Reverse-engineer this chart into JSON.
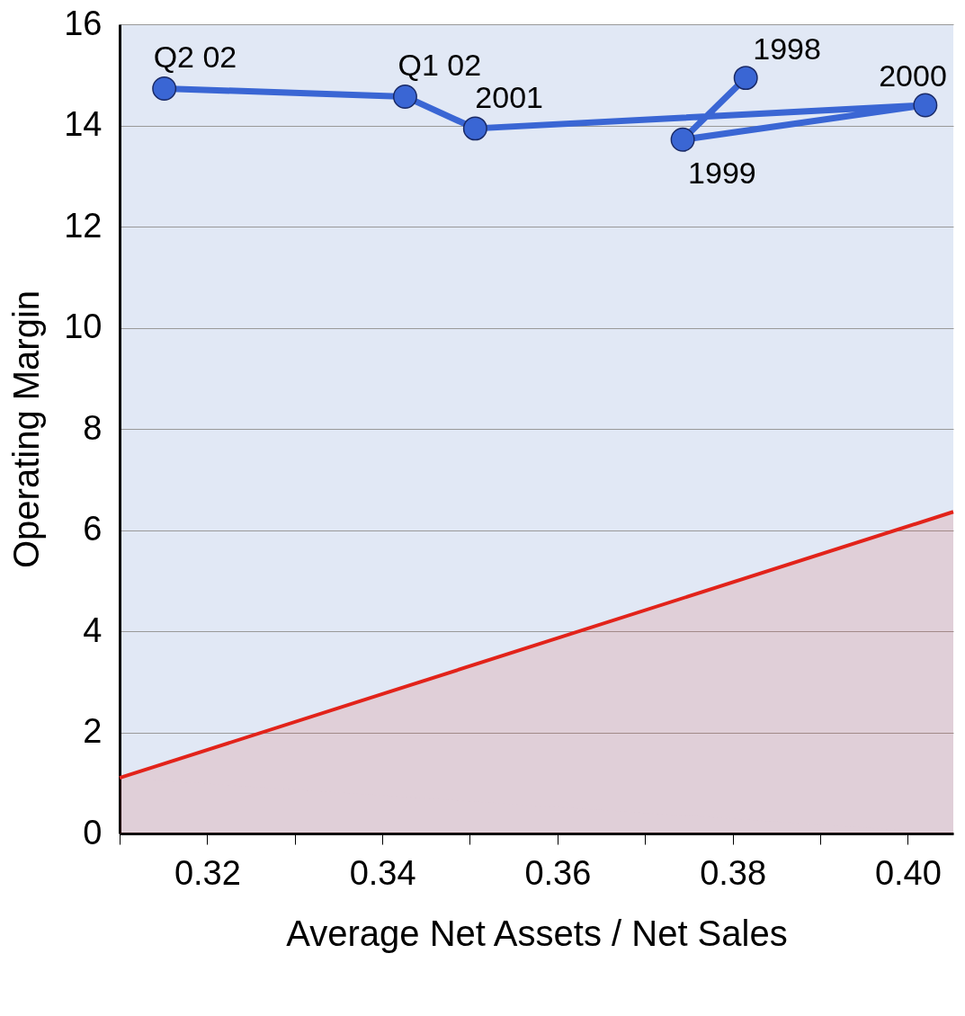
{
  "chart_data": {
    "type": "line",
    "xlabel": "Average Net Assets / Net Sales",
    "ylabel": "Operating Margin",
    "series": [
      {
        "type": "area",
        "color": "#e2231a",
        "x": [
          0.31,
          0.4052
        ],
        "values": [
          1.1,
          6.36
        ]
      },
      {
        "color": "#3a66d4",
        "marker": "circle",
        "x": [
          0.3815,
          0.3743,
          0.402,
          0.3506,
          0.3426,
          0.3151
        ],
        "values": [
          14.94,
          13.72,
          14.4,
          13.94,
          14.57,
          14.73
        ]
      }
    ],
    "annotations": [
      {
        "text": "1998",
        "x": 0.3815,
        "y": 14.94
      },
      {
        "text": "1999",
        "x": 0.3743,
        "y": 13.72
      },
      {
        "text": "2000",
        "x": 0.402,
        "y": 14.4
      },
      {
        "text": "2001",
        "x": 0.3506,
        "y": 13.94
      },
      {
        "text": "Q1 02",
        "x": 0.3426,
        "y": 14.57
      },
      {
        "text": "Q2 02",
        "x": 0.3151,
        "y": 14.73
      }
    ],
    "xlim": [
      0.31,
      0.4052
    ],
    "ylim": [
      0,
      16
    ],
    "xticks": [
      {
        "value": 0.31,
        "label": null
      },
      0.32,
      {
        "value": 0.33,
        "label": null
      },
      0.34,
      {
        "value": 0.35,
        "label": null
      },
      0.36,
      {
        "value": 0.37,
        "label": null
      },
      0.38,
      {
        "value": 0.39,
        "label": null
      },
      {
        "value": 0.4,
        "label": "0.40"
      }
    ],
    "yticks": [
      0,
      2,
      4,
      6,
      8,
      10,
      12,
      14,
      16
    ],
    "grid": "y"
  }
}
